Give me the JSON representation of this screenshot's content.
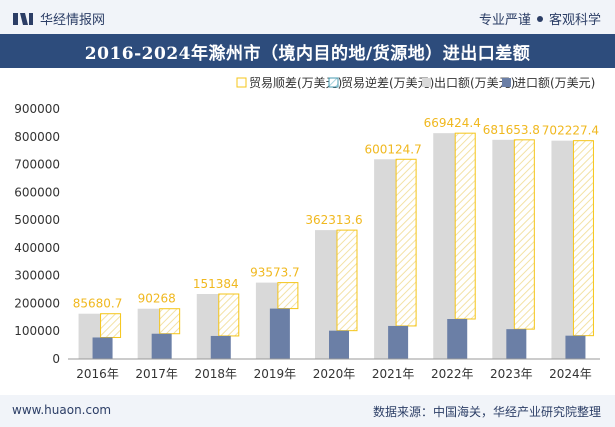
{
  "header": {
    "brand": "华经情报网",
    "right_text_1": "专业严谨",
    "right_text_2": "客观科学"
  },
  "title": "2016-2024年滁州市（境内目的地/货源地）进出口差额",
  "footer": {
    "left": "www.huaon.com",
    "right": "数据来源：中国海关，华经产业研究院整理"
  },
  "colors": {
    "export": "#d9d9d9",
    "import": "#6b7fa6",
    "surplus": "#f5c518",
    "deficit": "#4a9bb0",
    "header_bg": "#2d4c7c"
  },
  "chart_data": {
    "type": "bar",
    "categories": [
      "2016年",
      "2017年",
      "2018年",
      "2019年",
      "2020年",
      "2021年",
      "2022年",
      "2023年",
      "2024年"
    ],
    "series": [
      {
        "name": "贸易顺差(万美元)",
        "values": [
          85680.7,
          90268,
          151384,
          93573.7,
          362313.6,
          600124.7,
          669424.4,
          681653.8,
          702227.4
        ]
      },
      {
        "name": "贸易逆差(万美元)",
        "values": [
          0,
          0,
          0,
          0,
          0,
          0,
          0,
          0,
          0
        ]
      },
      {
        "name": "出口额(万美元)",
        "values": [
          163000,
          181000,
          234000,
          275000,
          464000,
          719000,
          813000,
          789000,
          786000
        ]
      },
      {
        "name": "进口额(万美元)",
        "values": [
          77500,
          91000,
          83000,
          181500,
          102000,
          119000,
          144000,
          107500,
          84000
        ]
      }
    ],
    "data_labels": [
      "85680.7",
      "90268",
      "151384",
      "93573.7",
      "362313.6",
      "600124.7",
      "669424.4",
      "681653.8",
      "702227.4"
    ],
    "ylim": [
      0,
      900000
    ],
    "yticks": [
      "0",
      "100000",
      "200000",
      "300000",
      "400000",
      "500000",
      "600000",
      "700000",
      "800000",
      "900000"
    ],
    "legend_position": "top-right",
    "grid": false
  }
}
